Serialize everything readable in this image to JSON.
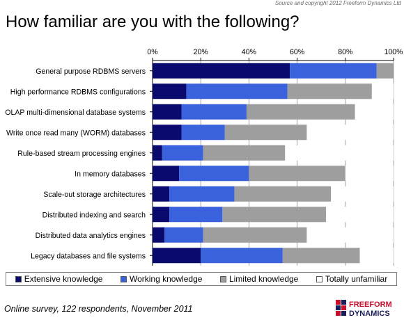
{
  "source_text": "Source and copyright 2012 Freeform Dynamics Ltd",
  "footnote": "Online survey, 122 respondents, November 2011",
  "logo": {
    "line1": "FREEFORM",
    "line2": "DYNAMICS"
  },
  "colors": {
    "extensive": "#0a0a6e",
    "working": "#3a62dc",
    "limited": "#9e9e9e",
    "unfamiliar": "#ffffff",
    "logo_red": "#c8102e",
    "logo_navy": "#1a1e5c"
  },
  "chart_data": {
    "type": "bar",
    "orientation": "horizontal",
    "stacked": true,
    "title": "How familiar are you with the following?",
    "xlim": [
      0,
      100
    ],
    "x_ticks": [
      "0%",
      "20%",
      "40%",
      "60%",
      "80%",
      "100%"
    ],
    "grid": true,
    "legend_position": "bottom",
    "categories": [
      "General purpose RDBMS servers",
      "High performance RDBMS configurations",
      "OLAP multi-dimensional database systems",
      "Write once read many (WORM) databases",
      "Rule-based stream processing engines",
      "In memory databases",
      "Scale-out storage architectures",
      "Distributed indexing and search",
      "Distributed data analytics engines",
      "Legacy databases and file systems"
    ],
    "series": [
      {
        "name": "Extensive knowledge",
        "color": "#0a0a6e",
        "values": [
          57,
          14,
          12,
          12,
          4,
          11,
          7,
          7,
          5,
          20
        ]
      },
      {
        "name": "Working knowledge",
        "color": "#3a62dc",
        "values": [
          36,
          42,
          27,
          18,
          17,
          29,
          27,
          22,
          16,
          34
        ]
      },
      {
        "name": "Limited knowledge",
        "color": "#9e9e9e",
        "values": [
          7,
          35,
          45,
          34,
          34,
          40,
          40,
          43,
          43,
          32
        ]
      },
      {
        "name": "Totally unfamiliar",
        "color": "#ffffff",
        "values": [
          0,
          9,
          16,
          36,
          45,
          20,
          26,
          28,
          36,
          14
        ]
      }
    ]
  }
}
